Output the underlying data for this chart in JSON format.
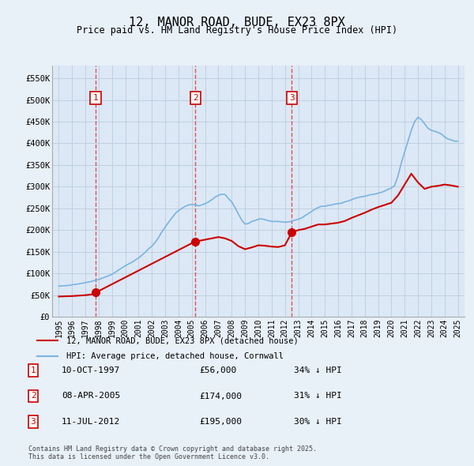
{
  "title": "12, MANOR ROAD, BUDE, EX23 8PX",
  "subtitle": "Price paid vs. HM Land Registry's House Price Index (HPI)",
  "background_color": "#e8f0f8",
  "plot_bg_color": "#dce8f5",
  "hpi_color": "#7ab4e0",
  "price_color": "#cc0000",
  "sale_marker_color": "#cc0000",
  "annotation_box_color": "#cc0000",
  "grid_color": "#c0d0e0",
  "dashed_line_color": "#e05050",
  "ylim": [
    0,
    580000
  ],
  "yticks": [
    0,
    50000,
    100000,
    150000,
    200000,
    250000,
    300000,
    350000,
    400000,
    450000,
    500000,
    550000
  ],
  "ytick_labels": [
    "£0",
    "£50K",
    "£100K",
    "£150K",
    "£200K",
    "£250K",
    "£300K",
    "£350K",
    "£400K",
    "£450K",
    "£500K",
    "£550K"
  ],
  "xlim_start": 1994.5,
  "xlim_end": 2025.5,
  "xticks": [
    1995,
    1996,
    1997,
    1998,
    1999,
    2000,
    2001,
    2002,
    2003,
    2004,
    2005,
    2006,
    2007,
    2008,
    2009,
    2010,
    2011,
    2012,
    2013,
    2014,
    2015,
    2016,
    2017,
    2018,
    2019,
    2020,
    2021,
    2022,
    2023,
    2024,
    2025
  ],
  "sales": [
    {
      "year": 1997.77,
      "price": 56000,
      "label": "1"
    },
    {
      "year": 2005.27,
      "price": 174000,
      "label": "2"
    },
    {
      "year": 2012.52,
      "price": 195000,
      "label": "3"
    }
  ],
  "sale_annotations": [
    {
      "label": "1",
      "date": "10-OCT-1997",
      "price": "£56,000",
      "pct": "34% ↓ HPI"
    },
    {
      "label": "2",
      "date": "08-APR-2005",
      "price": "£174,000",
      "pct": "31% ↓ HPI"
    },
    {
      "label": "3",
      "date": "11-JUL-2012",
      "price": "£195,000",
      "pct": "30% ↓ HPI"
    }
  ],
  "legend_line1": "12, MANOR ROAD, BUDE, EX23 8PX (detached house)",
  "legend_line2": "HPI: Average price, detached house, Cornwall",
  "footer": "Contains HM Land Registry data © Crown copyright and database right 2025.\nThis data is licensed under the Open Government Licence v3.0.",
  "hpi_data_x": [
    1995.0,
    1995.25,
    1995.5,
    1995.75,
    1996.0,
    1996.25,
    1996.5,
    1996.75,
    1997.0,
    1997.25,
    1997.5,
    1997.75,
    1998.0,
    1998.25,
    1998.5,
    1998.75,
    1999.0,
    1999.25,
    1999.5,
    1999.75,
    2000.0,
    2000.25,
    2000.5,
    2000.75,
    2001.0,
    2001.25,
    2001.5,
    2001.75,
    2002.0,
    2002.25,
    2002.5,
    2002.75,
    2003.0,
    2003.25,
    2003.5,
    2003.75,
    2004.0,
    2004.25,
    2004.5,
    2004.75,
    2005.0,
    2005.25,
    2005.5,
    2005.75,
    2006.0,
    2006.25,
    2006.5,
    2006.75,
    2007.0,
    2007.25,
    2007.5,
    2007.75,
    2008.0,
    2008.25,
    2008.5,
    2008.75,
    2009.0,
    2009.25,
    2009.5,
    2009.75,
    2010.0,
    2010.25,
    2010.5,
    2010.75,
    2011.0,
    2011.25,
    2011.5,
    2011.75,
    2012.0,
    2012.25,
    2012.5,
    2012.75,
    2013.0,
    2013.25,
    2013.5,
    2013.75,
    2014.0,
    2014.25,
    2014.5,
    2014.75,
    2015.0,
    2015.25,
    2015.5,
    2015.75,
    2016.0,
    2016.25,
    2016.5,
    2016.75,
    2017.0,
    2017.25,
    2017.5,
    2017.75,
    2018.0,
    2018.25,
    2018.5,
    2018.75,
    2019.0,
    2019.25,
    2019.5,
    2019.75,
    2020.0,
    2020.25,
    2020.5,
    2020.75,
    2021.0,
    2021.25,
    2021.5,
    2021.75,
    2022.0,
    2022.25,
    2022.5,
    2022.75,
    2023.0,
    2023.25,
    2023.5,
    2023.75,
    2024.0,
    2024.25,
    2024.5,
    2024.75,
    2025.0
  ],
  "hpi_data_y": [
    71000,
    71500,
    72000,
    72500,
    74000,
    75000,
    76000,
    77500,
    79000,
    80500,
    82000,
    84500,
    86000,
    89000,
    92000,
    95000,
    98000,
    103000,
    108000,
    113000,
    118000,
    122000,
    126000,
    131000,
    136000,
    142000,
    149000,
    157000,
    163000,
    172000,
    183000,
    196000,
    207000,
    218000,
    228000,
    238000,
    245000,
    250000,
    255000,
    258000,
    259000,
    258000,
    256000,
    258000,
    261000,
    265000,
    270000,
    276000,
    280000,
    283000,
    282000,
    273000,
    265000,
    252000,
    237000,
    223000,
    214000,
    215000,
    220000,
    222000,
    225000,
    226000,
    224000,
    222000,
    220000,
    220000,
    220000,
    219000,
    218000,
    219000,
    220000,
    223000,
    225000,
    228000,
    233000,
    238000,
    243000,
    248000,
    252000,
    255000,
    255000,
    257000,
    258000,
    260000,
    261000,
    262000,
    265000,
    267000,
    270000,
    273000,
    275000,
    277000,
    278000,
    280000,
    282000,
    283000,
    285000,
    287000,
    290000,
    294000,
    297000,
    303000,
    325000,
    355000,
    380000,
    405000,
    430000,
    450000,
    460000,
    455000,
    445000,
    435000,
    430000,
    428000,
    425000,
    422000,
    415000,
    410000,
    408000,
    405000,
    405000
  ],
  "price_data_x": [
    1995.0,
    1995.5,
    1996.0,
    1996.5,
    1997.0,
    1997.5,
    1997.77,
    1997.77,
    2005.27,
    2005.27,
    2005.5,
    2006.0,
    2006.5,
    2007.0,
    2007.5,
    2008.0,
    2008.5,
    2009.0,
    2009.5,
    2010.0,
    2010.5,
    2011.0,
    2011.5,
    2012.0,
    2012.52,
    2012.52,
    2013.0,
    2013.5,
    2014.0,
    2014.5,
    2015.0,
    2015.5,
    2016.0,
    2016.5,
    2017.0,
    2017.5,
    2018.0,
    2018.5,
    2019.0,
    2019.5,
    2020.0,
    2020.5,
    2021.0,
    2021.5,
    2022.0,
    2022.5,
    2023.0,
    2023.5,
    2024.0,
    2024.5,
    2025.0
  ],
  "price_data_y": [
    47000,
    47500,
    48000,
    49000,
    50000,
    52000,
    56000,
    56000,
    174000,
    174000,
    175000,
    178000,
    181000,
    184000,
    181000,
    175000,
    163000,
    156000,
    160000,
    165000,
    164000,
    162000,
    161000,
    165000,
    195000,
    195000,
    200000,
    203000,
    208000,
    213000,
    213000,
    215000,
    217000,
    221000,
    228000,
    234000,
    240000,
    247000,
    253000,
    258000,
    263000,
    280000,
    305000,
    330000,
    310000,
    295000,
    300000,
    302000,
    305000,
    303000,
    300000
  ]
}
